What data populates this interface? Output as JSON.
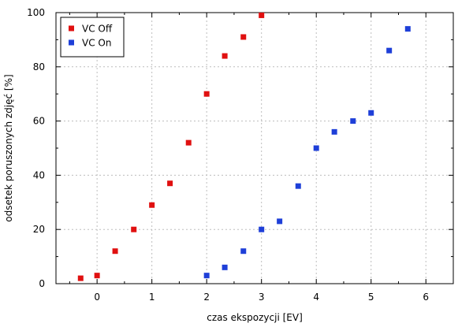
{
  "chart_data": {
    "type": "scatter",
    "xlabel": "czas ekspozycji [EV]",
    "ylabel": "odsetek poruszonych zdjęć [%]",
    "xlim": [
      -0.75,
      6.5
    ],
    "ylim": [
      0,
      100
    ],
    "x_ticks": [
      0,
      1,
      2,
      3,
      4,
      5,
      6
    ],
    "y_ticks": [
      0,
      20,
      40,
      60,
      80,
      100
    ],
    "grid": true,
    "legend_position": "top-left",
    "series": [
      {
        "name": "VC Off",
        "color": "#e01010",
        "marker": "square",
        "points": [
          {
            "x": -0.3,
            "y": 2
          },
          {
            "x": 0.0,
            "y": 3
          },
          {
            "x": 0.33,
            "y": 12
          },
          {
            "x": 0.67,
            "y": 20
          },
          {
            "x": 1.0,
            "y": 29
          },
          {
            "x": 1.33,
            "y": 37
          },
          {
            "x": 1.67,
            "y": 52
          },
          {
            "x": 2.0,
            "y": 70
          },
          {
            "x": 2.33,
            "y": 84
          },
          {
            "x": 2.67,
            "y": 91
          },
          {
            "x": 3.0,
            "y": 99
          }
        ]
      },
      {
        "name": "VC On",
        "color": "#1e3fd8",
        "marker": "square",
        "points": [
          {
            "x": 2.0,
            "y": 3
          },
          {
            "x": 2.33,
            "y": 6
          },
          {
            "x": 2.67,
            "y": 12
          },
          {
            "x": 3.0,
            "y": 20
          },
          {
            "x": 3.33,
            "y": 23
          },
          {
            "x": 3.67,
            "y": 36
          },
          {
            "x": 4.0,
            "y": 50
          },
          {
            "x": 4.33,
            "y": 56
          },
          {
            "x": 4.67,
            "y": 60
          },
          {
            "x": 5.0,
            "y": 63
          },
          {
            "x": 5.33,
            "y": 86
          },
          {
            "x": 5.67,
            "y": 94
          }
        ]
      }
    ]
  }
}
